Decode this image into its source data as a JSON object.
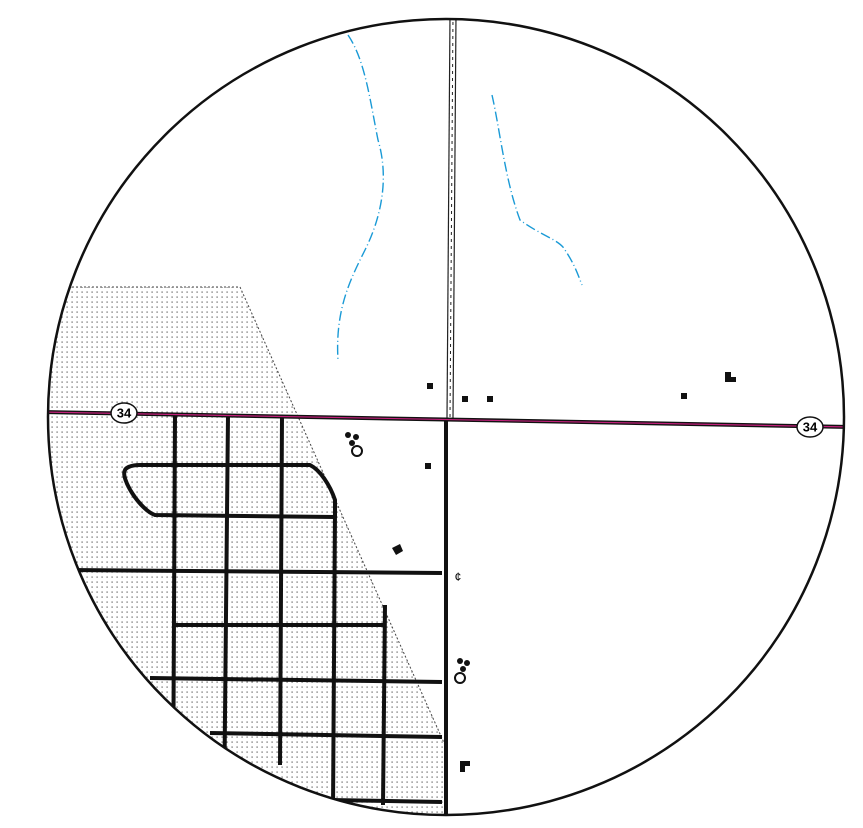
{
  "shields": [
    {
      "label": "34"
    },
    {
      "label": "34"
    }
  ],
  "symbols": {
    "centerline": "¢"
  }
}
